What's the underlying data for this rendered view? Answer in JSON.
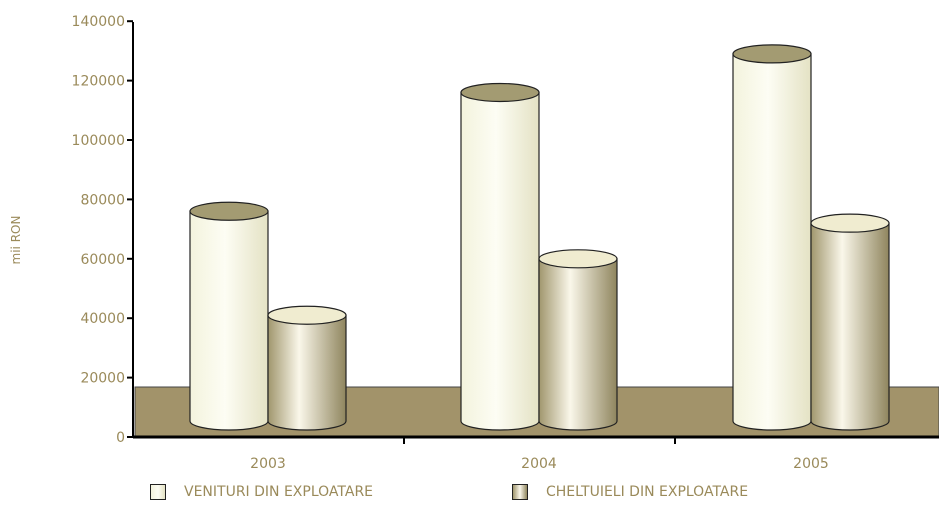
{
  "chart_data": {
    "type": "bar",
    "style": "3d-cylinder",
    "title": "",
    "xlabel": "",
    "ylabel": "mii RON",
    "ylim": [
      0,
      140000
    ],
    "yticks": [
      "0",
      "20000",
      "40000",
      "60000",
      "80000",
      "100000",
      "120000",
      "140000"
    ],
    "categories": [
      "2003",
      "2004",
      "2005"
    ],
    "series": [
      {
        "name": "VENITURI DIN EXPLOATARE",
        "values": [
          76000,
          116000,
          129000
        ],
        "color": "#f6f6e2",
        "top_color": "#a39b72"
      },
      {
        "name": "CHELTUIELI DIN EXPLOATARE",
        "values": [
          41000,
          60000,
          72000
        ],
        "color": "#c8bd99",
        "top_color": "#f0ecd0"
      }
    ],
    "floor_color": "#a2936a",
    "text_color": "#9a8a5a",
    "legend_position": "bottom",
    "grid": false
  }
}
